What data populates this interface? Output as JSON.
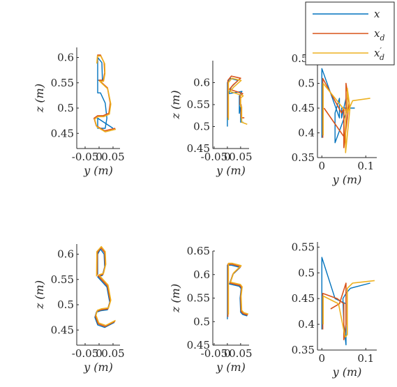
{
  "legend": {
    "position": "top-right",
    "entries": [
      {
        "label": "x",
        "color": "#0072BD"
      },
      {
        "label": "x_d",
        "color": "#D95319"
      },
      {
        "label": "x'_d",
        "color": "#EDB120"
      }
    ]
  },
  "chart_data": [
    {
      "type": "line",
      "row": 1,
      "col": 1,
      "xlabel": "y (m)",
      "ylabel": "z (m)",
      "xlim": [
        -0.08,
        0.075
      ],
      "ylim": [
        0.42,
        0.62
      ],
      "xticks": [
        "-0.05",
        "0",
        "0.05"
      ],
      "xtick_values": [
        -0.05,
        0,
        0.05
      ],
      "yticks": [
        "0.45",
        "0.5",
        "0.55",
        "0.6"
      ],
      "ytick_values": [
        0.45,
        0.5,
        0.55,
        0.6
      ],
      "series": [
        {
          "color": "#0072BD",
          "x": [
            -0.005,
            -0.005,
            0.01,
            0.012,
            -0.005,
            -0.005,
            0.005,
            0.022,
            0.028,
            0.022,
            0.003,
            -0.005,
            -0.005,
            0.05
          ],
          "y": [
            0.54,
            0.6,
            0.59,
            0.555,
            0.555,
            0.53,
            0.53,
            0.51,
            0.48,
            0.46,
            0.46,
            0.46,
            0.48,
            0.46
          ]
        },
        {
          "color": "#D95319",
          "x": [
            -0.007,
            -0.005,
            0.005,
            0.018,
            0.02,
            0.015,
            0.0,
            0.03,
            0.04,
            0.035,
            0.015,
            -0.005,
            -0.018,
            -0.01,
            0.02,
            0.058
          ],
          "y": [
            0.59,
            0.605,
            0.605,
            0.59,
            0.57,
            0.555,
            0.555,
            0.54,
            0.51,
            0.49,
            0.485,
            0.485,
            0.48,
            0.465,
            0.455,
            0.46
          ]
        },
        {
          "color": "#EDB120",
          "x": [
            -0.008,
            -0.006,
            0.006,
            0.02,
            0.021,
            0.016,
            0.002,
            0.031,
            0.042,
            0.037,
            0.017,
            -0.003,
            -0.016,
            -0.008,
            0.022,
            0.06
          ],
          "y": [
            0.588,
            0.603,
            0.603,
            0.588,
            0.568,
            0.553,
            0.553,
            0.538,
            0.508,
            0.488,
            0.483,
            0.483,
            0.478,
            0.463,
            0.453,
            0.458
          ]
        }
      ]
    },
    {
      "type": "line",
      "row": 1,
      "col": 2,
      "xlabel": "y (m)",
      "ylabel": "z (m)",
      "xlim": [
        -0.055,
        0.082
      ],
      "ylim": [
        0.45,
        0.65
      ],
      "xticks": [
        "-0.05",
        "0",
        "0.05"
      ],
      "xtick_values": [
        -0.05,
        0,
        0.05
      ],
      "yticks": [
        "0.45",
        "0.5",
        "0.55",
        "0.6"
      ],
      "ytick_values": [
        0.45,
        0.5,
        0.55,
        0.6
      ],
      "series": [
        {
          "color": "#0072BD",
          "x": [
            0.0,
            0.0,
            0.01,
            0.04,
            0.015,
            0.005,
            0.055,
            0.045,
            0.045,
            0.05,
            0.05,
            0.06
          ],
          "y": [
            0.5,
            0.6,
            0.61,
            0.605,
            0.59,
            0.575,
            0.58,
            0.57,
            0.53,
            0.55,
            0.51,
            0.51
          ]
        },
        {
          "color": "#D95319",
          "x": [
            0.002,
            0.002,
            0.015,
            0.05,
            0.022,
            0.008,
            0.058,
            0.048,
            0.048,
            0.052,
            0.052,
            0.064
          ],
          "y": [
            0.52,
            0.605,
            0.615,
            0.61,
            0.595,
            0.585,
            0.575,
            0.57,
            0.55,
            0.55,
            0.52,
            0.52
          ]
        },
        {
          "color": "#EDB120",
          "x": [
            0.004,
            0.004,
            0.017,
            0.052,
            0.024,
            0.01,
            0.06,
            0.05,
            0.05,
            0.054,
            0.054,
            0.075
          ],
          "y": [
            0.515,
            0.6,
            0.61,
            0.605,
            0.59,
            0.58,
            0.57,
            0.565,
            0.545,
            0.545,
            0.51,
            0.505
          ]
        }
      ]
    },
    {
      "type": "line",
      "row": 1,
      "col": 3,
      "xlabel": "y (m)",
      "ylabel": "",
      "xlim": [
        -0.01,
        0.125
      ],
      "ylim": [
        0.35,
        0.56
      ],
      "xticks": [
        "0",
        "0.1"
      ],
      "xtick_values": [
        0,
        0.1
      ],
      "yticks": [
        "0.35",
        "0.4",
        "0.45",
        "0.5",
        "0.55"
      ],
      "ytick_values": [
        0.35,
        0.4,
        0.45,
        0.5,
        0.55
      ],
      "series": [
        {
          "color": "#0072BD",
          "x": [
            0.0,
            0.0,
            0.04,
            0.04,
            0.03,
            0.03,
            0.055,
            0.055,
            0.045,
            0.045,
            0.075
          ],
          "y": [
            0.39,
            0.53,
            0.43,
            0.47,
            0.44,
            0.38,
            0.44,
            0.47,
            0.43,
            0.45,
            0.45
          ]
        },
        {
          "color": "#D95319",
          "x": [
            0.002,
            0.002,
            0.045,
            0.05,
            0.05,
            0.062,
            0.055,
            0.055,
            0.052,
            0.005
          ],
          "y": [
            0.39,
            0.51,
            0.44,
            0.45,
            0.37,
            0.46,
            0.5,
            0.43,
            0.39,
            0.45
          ]
        },
        {
          "color": "#EDB120",
          "x": [
            0.003,
            0.003,
            0.048,
            0.054,
            0.054,
            0.064,
            0.058,
            0.058,
            0.07,
            0.11
          ],
          "y": [
            0.395,
            0.5,
            0.45,
            0.445,
            0.36,
            0.45,
            0.49,
            0.44,
            0.465,
            0.47
          ]
        }
      ]
    },
    {
      "type": "line",
      "row": 2,
      "col": 1,
      "xlabel": "y (m)",
      "ylabel": "z (m)",
      "xlim": [
        -0.08,
        0.075
      ],
      "ylim": [
        0.42,
        0.62
      ],
      "xticks": [
        "-0.05",
        "0",
        "0.05"
      ],
      "xtick_values": [
        -0.05,
        0,
        0.05
      ],
      "yticks": [
        "0.45",
        "0.5",
        "0.55",
        "0.6"
      ],
      "ytick_values": [
        0.45,
        0.5,
        0.55,
        0.6
      ],
      "series": [
        {
          "color": "#0072BD",
          "x": [
            -0.005,
            -0.005,
            0.005,
            0.018,
            0.02,
            0.012,
            -0.005,
            0.028,
            0.038,
            0.03,
            0.005,
            -0.01,
            -0.015,
            -0.005,
            0.02,
            0.055
          ],
          "y": [
            0.56,
            0.6,
            0.61,
            0.6,
            0.575,
            0.558,
            0.555,
            0.535,
            0.505,
            0.49,
            0.488,
            0.485,
            0.475,
            0.46,
            0.455,
            0.465
          ]
        },
        {
          "color": "#D95319",
          "x": [
            -0.007,
            -0.006,
            0.006,
            0.02,
            0.022,
            0.014,
            -0.003,
            0.03,
            0.04,
            0.032,
            0.007,
            -0.008,
            -0.013,
            -0.003,
            0.022,
            0.057
          ],
          "y": [
            0.558,
            0.603,
            0.613,
            0.603,
            0.578,
            0.56,
            0.557,
            0.537,
            0.507,
            0.492,
            0.49,
            0.487,
            0.477,
            0.462,
            0.457,
            0.467
          ]
        },
        {
          "color": "#EDB120",
          "x": [
            -0.009,
            -0.008,
            0.008,
            0.022,
            0.024,
            0.016,
            -0.001,
            0.032,
            0.042,
            0.034,
            0.009,
            -0.006,
            -0.011,
            -0.001,
            0.024,
            0.059
          ],
          "y": [
            0.556,
            0.605,
            0.615,
            0.605,
            0.58,
            0.562,
            0.559,
            0.539,
            0.509,
            0.494,
            0.492,
            0.489,
            0.479,
            0.464,
            0.459,
            0.469
          ]
        }
      ]
    },
    {
      "type": "line",
      "row": 2,
      "col": 2,
      "xlabel": "y (m)",
      "ylabel": "z (m)",
      "xlim": [
        -0.055,
        0.082
      ],
      "ylim": [
        0.45,
        0.65
      ],
      "xticks": [
        "-0.05",
        "0",
        "0.05"
      ],
      "xtick_values": [
        -0.05,
        0,
        0.05
      ],
      "yticks": [
        "0.45",
        "0.5",
        "0.55",
        "0.6",
        "0.65"
      ],
      "ytick_values": [
        0.45,
        0.5,
        0.55,
        0.6,
        0.65
      ],
      "series": [
        {
          "color": "#0072BD",
          "x": [
            0.0,
            0.0,
            0.015,
            0.048,
            0.02,
            0.008,
            0.045,
            0.052,
            0.048,
            0.05,
            0.058,
            0.075
          ],
          "y": [
            0.505,
            0.62,
            0.62,
            0.615,
            0.6,
            0.58,
            0.575,
            0.57,
            0.55,
            0.52,
            0.515,
            0.512
          ]
        },
        {
          "color": "#D95319",
          "x": [
            0.002,
            0.002,
            0.017,
            0.05,
            0.022,
            0.01,
            0.047,
            0.054,
            0.05,
            0.052,
            0.06,
            0.077
          ],
          "y": [
            0.51,
            0.622,
            0.622,
            0.617,
            0.602,
            0.582,
            0.577,
            0.572,
            0.552,
            0.522,
            0.517,
            0.514
          ]
        },
        {
          "color": "#EDB120",
          "x": [
            0.004,
            0.004,
            0.019,
            0.052,
            0.024,
            0.012,
            0.049,
            0.056,
            0.052,
            0.054,
            0.062,
            0.079
          ],
          "y": [
            0.515,
            0.624,
            0.624,
            0.619,
            0.604,
            0.584,
            0.579,
            0.574,
            0.554,
            0.524,
            0.519,
            0.516
          ]
        }
      ]
    },
    {
      "type": "line",
      "row": 2,
      "col": 3,
      "xlabel": "y (m)",
      "ylabel": "",
      "xlim": [
        -0.01,
        0.125
      ],
      "ylim": [
        0.35,
        0.56
      ],
      "xticks": [
        "0",
        "0.1"
      ],
      "xtick_values": [
        0,
        0.1
      ],
      "yticks": [
        "0.35",
        "0.4",
        "0.45",
        "0.5",
        "0.55"
      ],
      "ytick_values": [
        0.35,
        0.4,
        0.45,
        0.5,
        0.55
      ],
      "series": [
        {
          "color": "#0072BD",
          "x": [
            0.0,
            0.0,
            0.03,
            0.055,
            0.055,
            0.05,
            0.048,
            0.055,
            0.065,
            0.11
          ],
          "y": [
            0.39,
            0.53,
            0.45,
            0.44,
            0.36,
            0.4,
            0.45,
            0.46,
            0.47,
            0.48
          ]
        },
        {
          "color": "#D95319",
          "x": [
            0.002,
            0.002,
            0.035,
            0.05,
            0.05,
            0.055,
            0.055,
            0.04,
            0.02
          ],
          "y": [
            0.39,
            0.46,
            0.45,
            0.44,
            0.37,
            0.4,
            0.48,
            0.44,
            0.43
          ]
        },
        {
          "color": "#EDB120",
          "x": [
            0.003,
            0.003,
            0.038,
            0.053,
            0.058,
            0.058,
            0.07,
            0.12
          ],
          "y": [
            0.4,
            0.455,
            0.44,
            0.375,
            0.38,
            0.47,
            0.48,
            0.485
          ]
        }
      ]
    }
  ]
}
